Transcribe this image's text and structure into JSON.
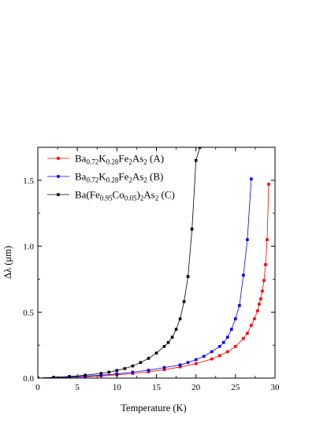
{
  "chart_data": {
    "type": "line",
    "xlabel": "Temperature (K)",
    "ylabel": "Δλ (μm)",
    "xlim": [
      0,
      30
    ],
    "ylim": [
      0,
      1.75
    ],
    "x_ticks": [
      "0",
      "5",
      "10",
      "15",
      "20",
      "25",
      "30"
    ],
    "y_ticks": [
      "0.0",
      "0.5",
      "1.0",
      "1.5"
    ],
    "grid": false,
    "legend_position": "top-left",
    "series": [
      {
        "name": "Ba0.72K0.28Fe2As2 (A)",
        "legend": {
          "base": "Ba",
          "sub1": "0.72",
          "mid": "K",
          "sub2": "0.28",
          "mid2": "Fe",
          "sub3": "2",
          "mid3": "As",
          "sub4": "2",
          "tail": " (A)"
        },
        "color": "#ff0000",
        "x": [
          0,
          2,
          4,
          6,
          8,
          10,
          12,
          14,
          16,
          18,
          20,
          22,
          23,
          24,
          25,
          26,
          26.5,
          27,
          27.4,
          27.8,
          28.0,
          28.2,
          28.4,
          28.6,
          28.8,
          29.0,
          29.2
        ],
        "y": [
          0.0,
          0.003,
          0.006,
          0.01,
          0.016,
          0.025,
          0.035,
          0.048,
          0.064,
          0.085,
          0.11,
          0.145,
          0.17,
          0.2,
          0.24,
          0.3,
          0.34,
          0.4,
          0.45,
          0.51,
          0.56,
          0.6,
          0.66,
          0.74,
          0.86,
          1.05,
          1.47
        ]
      },
      {
        "name": "Ba0.72K0.28Fe2As2 (B)",
        "legend": {
          "base": "Ba",
          "sub1": "0.72",
          "mid": "K",
          "sub2": "0.28",
          "mid2": "Fe",
          "sub3": "2",
          "mid3": "As",
          "sub4": "2",
          "tail": " (B)"
        },
        "color": "#0000ff",
        "x": [
          0,
          2,
          4,
          6,
          8,
          10,
          12,
          14,
          16,
          18,
          19,
          20,
          21,
          22,
          23,
          23.5,
          24,
          24.5,
          25,
          25.5,
          26,
          26.5,
          27
        ],
        "y": [
          0.0,
          0.004,
          0.008,
          0.014,
          0.022,
          0.032,
          0.045,
          0.06,
          0.08,
          0.1,
          0.118,
          0.14,
          0.165,
          0.2,
          0.24,
          0.27,
          0.31,
          0.37,
          0.45,
          0.55,
          0.78,
          1.05,
          1.51
        ]
      },
      {
        "name": "Ba(Fe0.95Co0.05)2As2 (C)",
        "legend": {
          "base": "Ba(Fe",
          "sub1": "0.95",
          "mid": "Co",
          "sub2": "0.05",
          "mid2": ")",
          "sub3": "2",
          "mid3": "As",
          "sub4": "2",
          "tail": " (C)"
        },
        "color": "#000000",
        "x": [
          0,
          2,
          4,
          6,
          8,
          9,
          10,
          11,
          12,
          13,
          14,
          15,
          16,
          16.5,
          17,
          17.5,
          18,
          18.5,
          19,
          19.5,
          20,
          20.5
        ],
        "y": [
          0.0,
          0.006,
          0.012,
          0.022,
          0.035,
          0.045,
          0.058,
          0.072,
          0.092,
          0.118,
          0.15,
          0.19,
          0.24,
          0.27,
          0.31,
          0.37,
          0.45,
          0.58,
          0.77,
          1.13,
          1.65,
          1.75
        ]
      }
    ]
  }
}
